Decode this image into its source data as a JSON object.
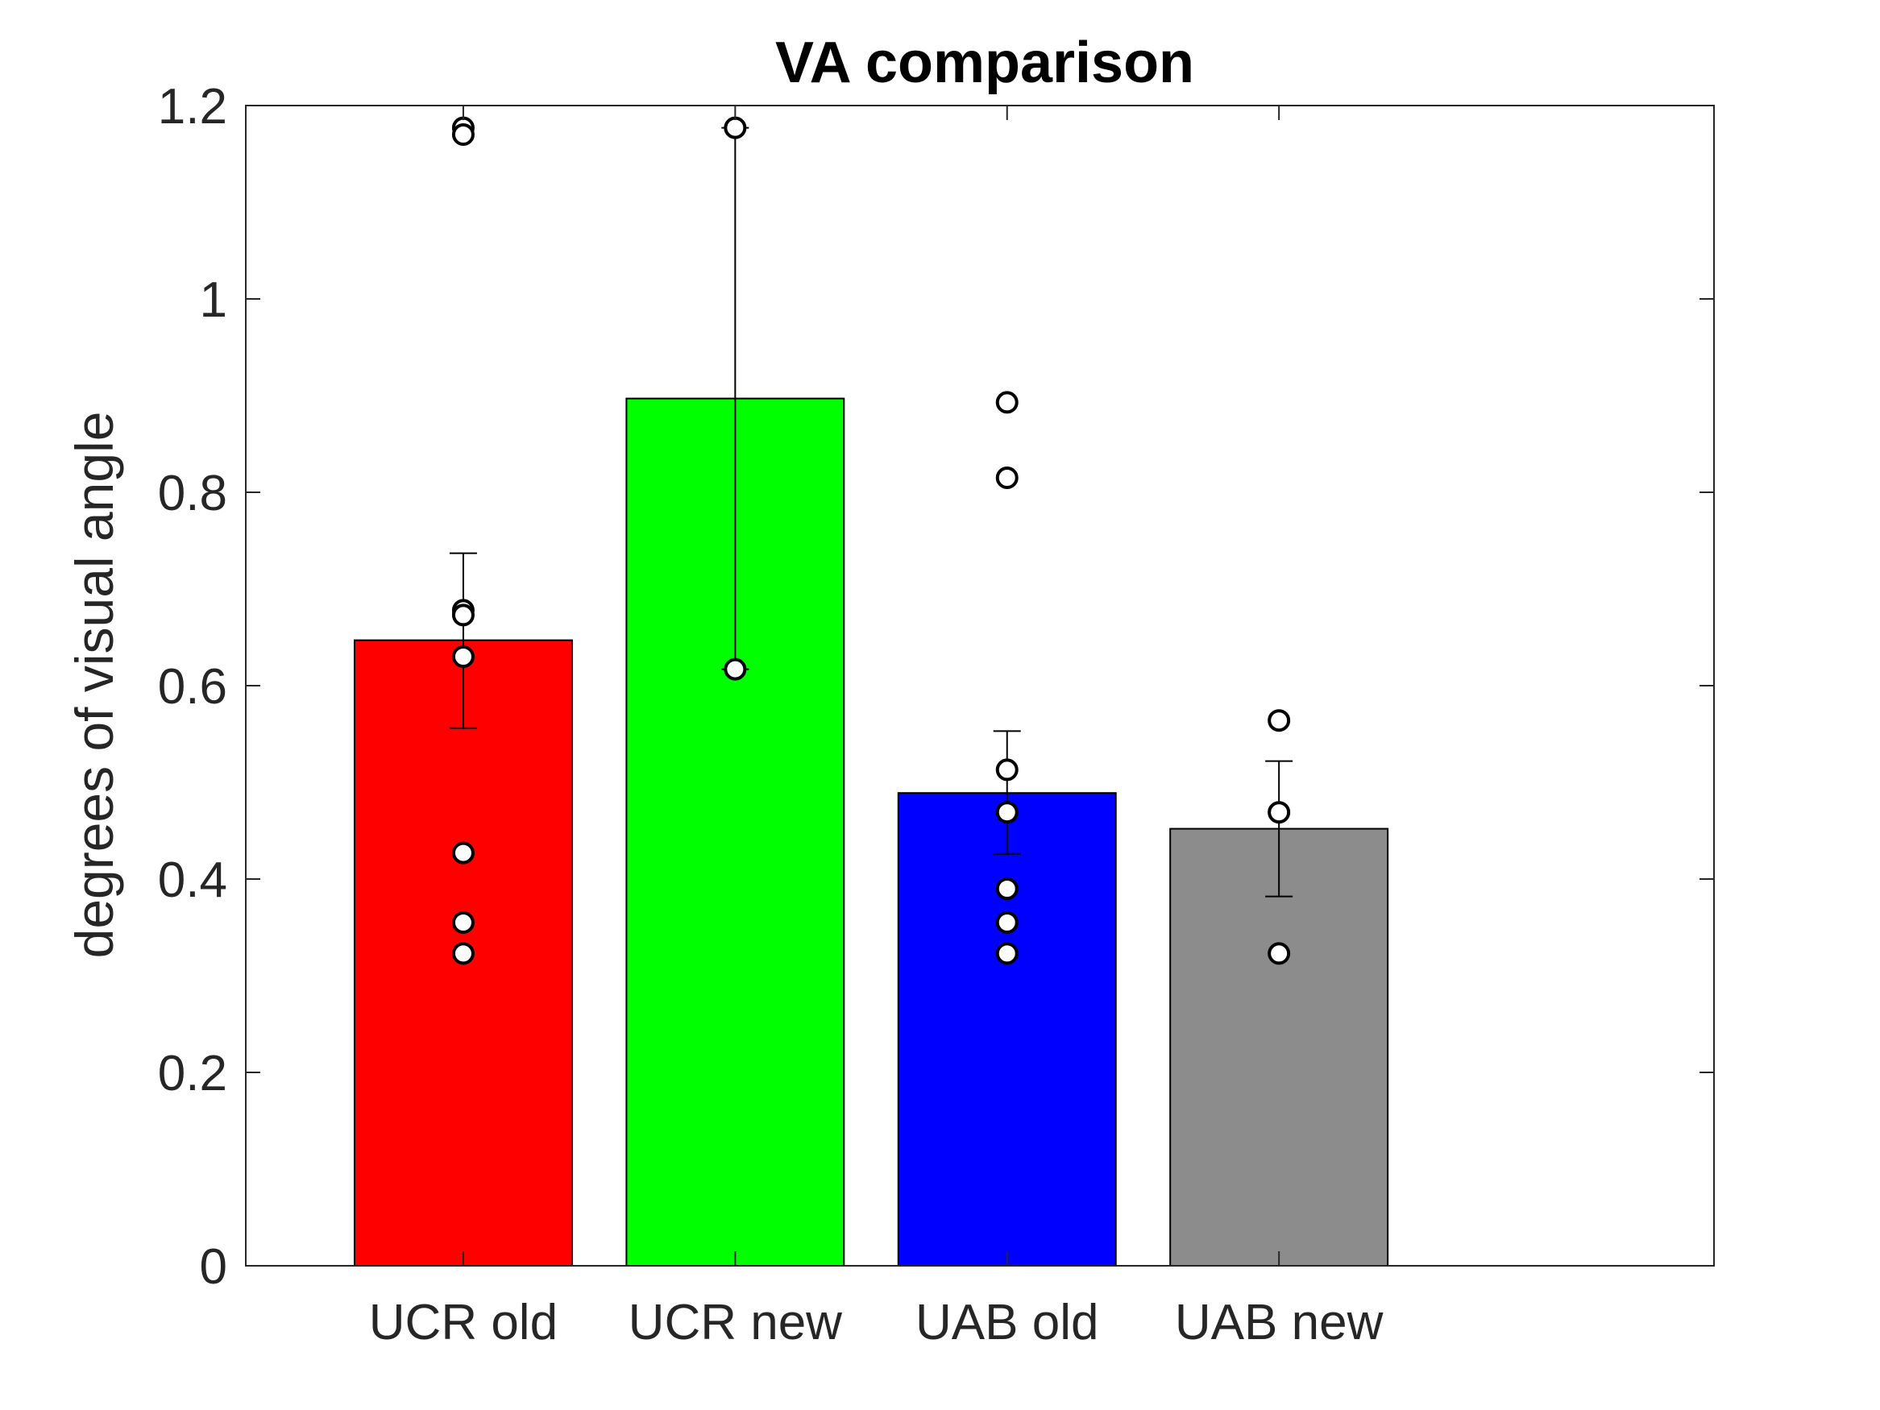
{
  "chart_data": {
    "type": "bar",
    "title": "VA comparison",
    "xlabel": "",
    "ylabel": "degrees of visual angle",
    "categories": [
      "UCR old",
      "UCR new",
      "UAB old",
      "UAB new"
    ],
    "values": [
      0.647,
      0.897,
      0.489,
      0.452
    ],
    "bar_colors": [
      "#ff0000",
      "#00ff00",
      "#0000ff",
      "#8c8c8c"
    ],
    "error_bars": [
      {
        "low": 0.556,
        "high": 0.737
      },
      {
        "low": 0.617,
        "high": 1.177
      },
      {
        "low": 0.426,
        "high": 0.553
      },
      {
        "low": 0.382,
        "high": 0.522
      }
    ],
    "points": [
      [
        1.177,
        1.17,
        0.678,
        0.673,
        0.63,
        0.427,
        0.355,
        0.323
      ],
      [
        1.177,
        0.617
      ],
      [
        0.893,
        0.815,
        0.513,
        0.469,
        0.39,
        0.355,
        0.323
      ],
      [
        0.564,
        0.469,
        0.323
      ]
    ],
    "ylim": [
      0,
      1.2
    ],
    "yticks": [
      "0",
      "0.2",
      "0.4",
      "0.6",
      "0.8",
      "1",
      "1.2"
    ],
    "ytick_values": [
      0,
      0.2,
      0.4,
      0.6,
      0.8,
      1,
      1.2
    ],
    "grid": false,
    "legend": "none"
  }
}
